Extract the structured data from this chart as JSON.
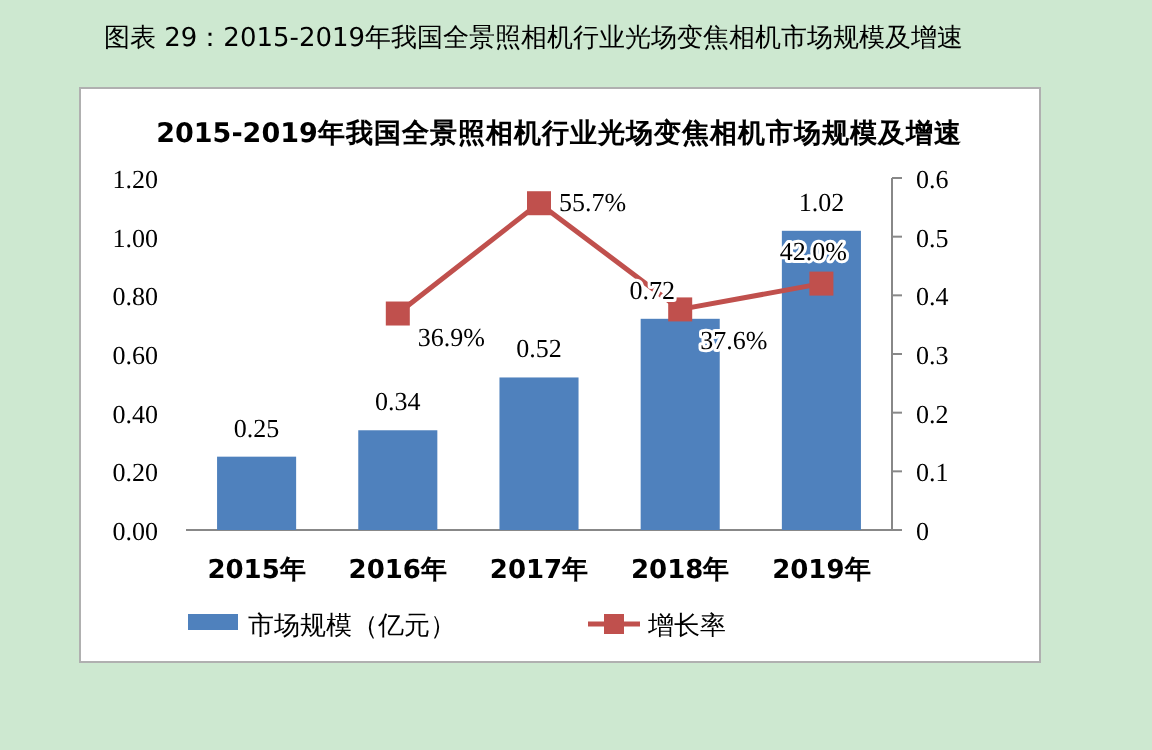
{
  "chart_data": {
    "type": "bar",
    "subtitle": "图表 29：2015-2019年我国全景照相机行业光场变焦相机市场规模及增速",
    "title": "2015-2019年我国全景照相机行业光场变焦相机市场规模及增速",
    "categories": [
      "2015年",
      "2016年",
      "2017年",
      "2018年",
      "2019年"
    ],
    "series": [
      {
        "name": "市场规模（亿元）",
        "color": "#4f81bd",
        "values": [
          0.25,
          0.34,
          0.52,
          0.72,
          1.02
        ],
        "value_labels": [
          "0.25",
          "0.34",
          "0.52",
          "0.72",
          "1.02"
        ]
      },
      {
        "name": "增长率",
        "type": "line",
        "axis": "y2",
        "color": "#c0504d",
        "marker": "square",
        "values": [
          null,
          0.369,
          0.557,
          0.376,
          0.42
        ],
        "value_labels": [
          null,
          "36.9%",
          "55.7%",
          "37.6%",
          "42.0%"
        ]
      }
    ],
    "ylim": [
      0,
      1.2
    ],
    "yticks": [
      {
        "value": 0,
        "label": "0.00"
      },
      {
        "value": 0.2,
        "label": "0.20"
      },
      {
        "value": 0.4,
        "label": "0.40"
      },
      {
        "value": 0.6,
        "label": "0.60"
      },
      {
        "value": 0.8,
        "label": "0.80"
      },
      {
        "value": 1,
        "label": "1.00"
      },
      {
        "value": 1.2,
        "label": "1.20"
      }
    ],
    "y2lim": [
      0,
      0.6
    ],
    "y2ticks": [
      0,
      0.1,
      0.2,
      0.3,
      0.4,
      0.5,
      0.6
    ],
    "grid": false,
    "legend": "bottom"
  }
}
